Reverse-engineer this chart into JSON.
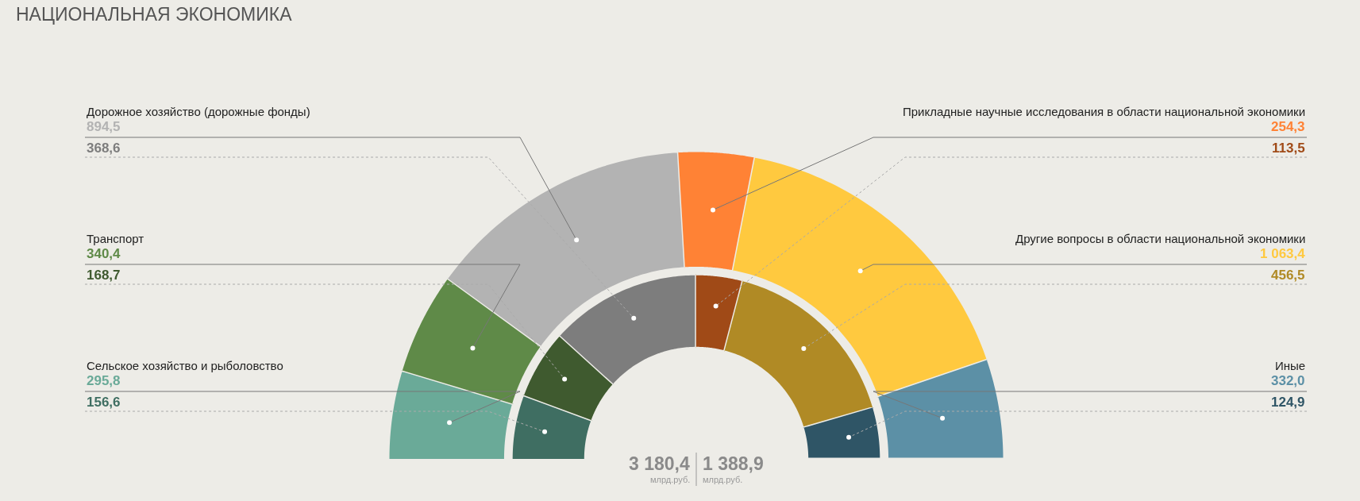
{
  "chart_data": {
    "type": "donut",
    "title": "НАЦИОНАЛЬНАЯ ЭКОНОМИКА",
    "categories": [
      "Сельское хозяйство и рыболовство",
      "Транспорт",
      "Дорожное хозяйство (дорожные фонды)",
      "Прикладные научные исследования в области национальной экономики",
      "Другие вопросы в области национальной экономики",
      "Иные"
    ],
    "series": [
      {
        "values": [
          295.8,
          340.4,
          894.5,
          254.3,
          1063.4,
          332.0
        ],
        "value_labels": [
          "295,8",
          "340,4",
          "894,5",
          "254,3",
          "1 063,4",
          "332,0"
        ],
        "colors": [
          "#6aaa98",
          "#5f8a48",
          "#b3b3b3",
          "#ff8235",
          "#ffc93f",
          "#5c90a6"
        ]
      },
      {
        "values": [
          156.6,
          168.7,
          368.6,
          113.5,
          456.5,
          124.9
        ],
        "value_labels": [
          "156,6",
          "168,7",
          "368,6",
          "113,5",
          "456,5",
          "124,9"
        ],
        "colors": [
          "#3f6e62",
          "#3f5a2f",
          "#7d7d7d",
          "#a04a17",
          "#b08a25",
          "#2f5566"
        ]
      }
    ],
    "totals": [
      "3 180,4",
      "1 388,9"
    ],
    "annotations": [
      "млрд.руб.",
      "млрд.руб."
    ]
  }
}
